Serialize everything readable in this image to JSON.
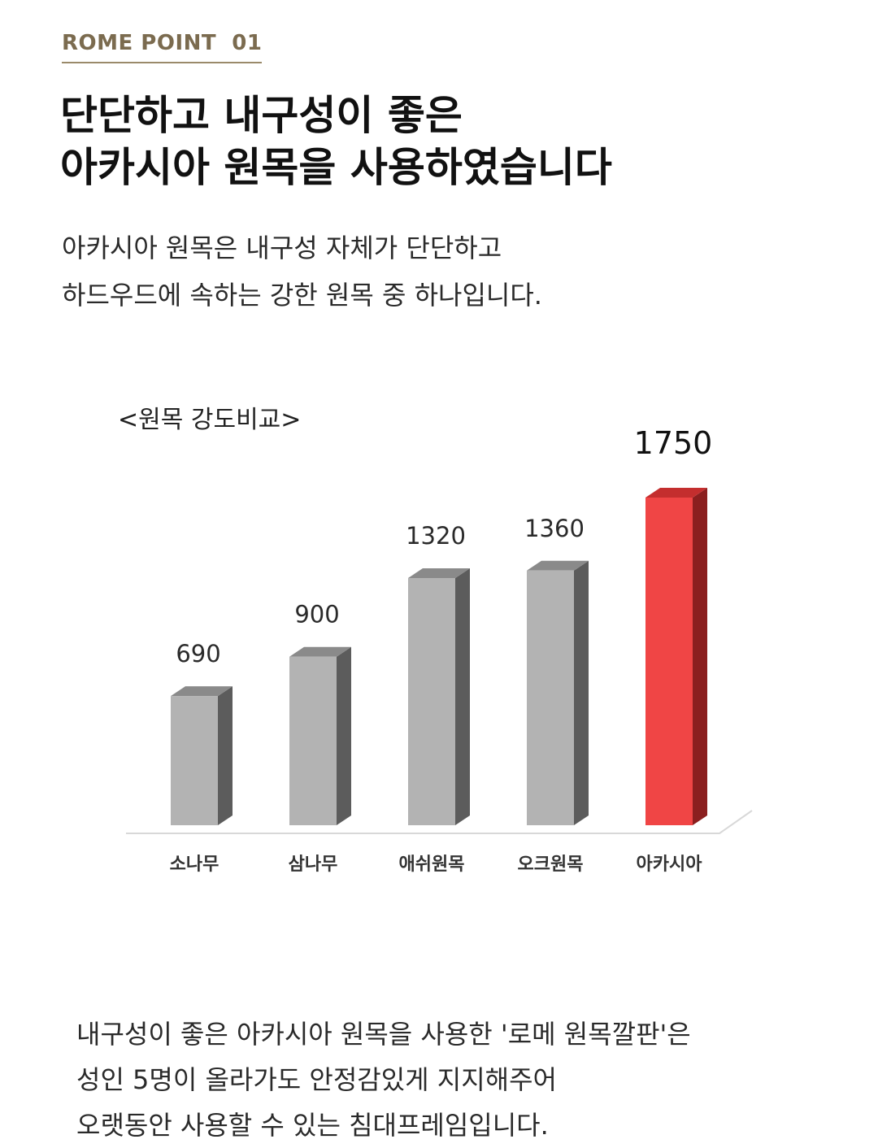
{
  "header": {
    "point_label": "ROME POINT  01",
    "headline_lines": [
      "단단하고 내구성이 좋은",
      "아카시아 원목을 사용하였습니다"
    ]
  },
  "intro": {
    "lines": [
      "아카시아 원목은 내구성 자체가 단단하고",
      "하드우드에 속하는 강한 원목 중 하나입니다."
    ]
  },
  "chart_data": {
    "type": "bar",
    "title": "<원목 강도비교>",
    "categories": [
      "소나무",
      "삼나무",
      "애쉬원목",
      "오크원목",
      "아카시아"
    ],
    "values": [
      690,
      900,
      1320,
      1360,
      1750
    ],
    "value_labels": [
      "690",
      "900",
      "1320",
      "1360",
      "1750"
    ],
    "highlight_index": 4,
    "colors": {
      "bar": "#b3b3b3",
      "bar_top": "#8a8a8a",
      "bar_side": "#5c5c5c",
      "highlight": "#f04545",
      "highlight_top": "#c42e2e",
      "highlight_side": "#8b1f1f"
    },
    "ylim": [
      0,
      1750
    ],
    "grid": false,
    "style": "3d-bar"
  },
  "closing": {
    "lines": [
      "내구성이 좋은 아카시아 원목을 사용한 '로메 원목깔판'은",
      "성인 5명이 올라가도 안정감있게 지지해주어",
      "오랫동안 사용할 수 있는 침대프레임입니다."
    ]
  }
}
